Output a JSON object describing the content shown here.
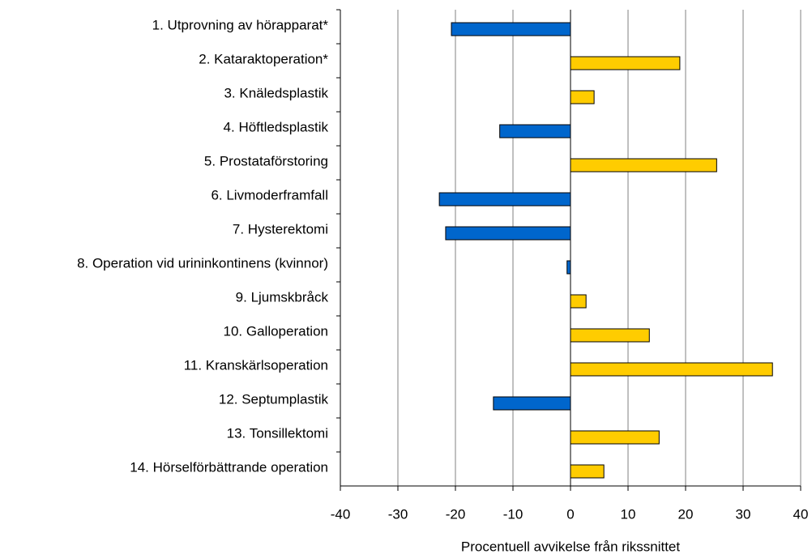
{
  "chart_data": {
    "type": "barh",
    "xlabel": "Procentuell avvikelse från rikssnittet",
    "categories": [
      "1. Utprovning av hörapparat*",
      "2. Kataraktoperation*",
      "3. Knäledsplastik",
      "4. Höftledsplastik",
      "5. Prostataförstoring",
      "6. Livmoderframfall",
      "7. Hysterektomi",
      "8. Operation vid urininkontinens (kvinnor)",
      "9. Ljumskbråck",
      "10. Galloperation",
      "11. Kranskärlsoperation",
      "12. Septumplastik",
      "13. Tonsillektomi",
      "14. Hörselförbättrande operation"
    ],
    "values": [
      -20.7,
      19,
      4.1,
      -12.3,
      25.4,
      -22.8,
      -21.7,
      -0.6,
      2.7,
      13.7,
      35.1,
      -13.4,
      15.4,
      5.8
    ],
    "color": "#ffcc00",
    "negative_color": "#0066cc",
    "xlim": [
      -40,
      40
    ],
    "xticks": [
      -40,
      -30,
      -20,
      -10,
      0,
      10,
      20,
      30,
      40
    ],
    "grid": true
  }
}
